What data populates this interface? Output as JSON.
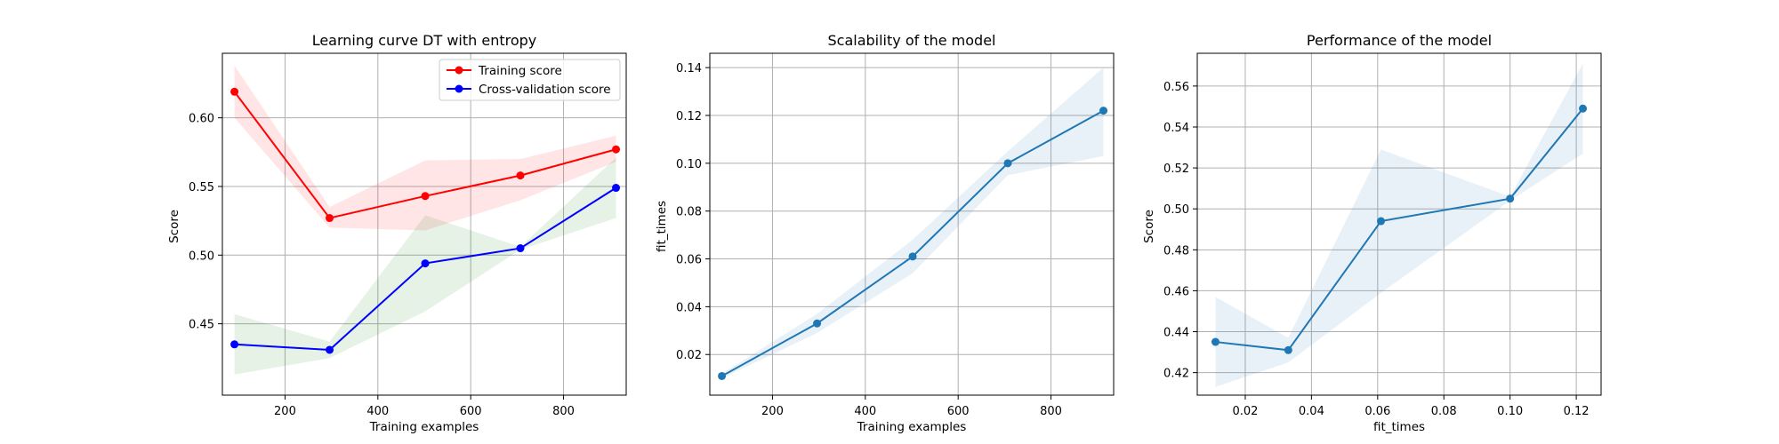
{
  "chart_data": [
    {
      "type": "line",
      "title": "Learning curve DT with entropy",
      "xlabel": "Training examples",
      "ylabel": "Score",
      "xlim": [
        65,
        935
      ],
      "ylim": [
        0.398,
        0.647
      ],
      "xticks": [
        200,
        400,
        600,
        800
      ],
      "yticks": [
        0.45,
        0.5,
        0.55,
        0.6
      ],
      "grid": true,
      "legend": "top-right",
      "x": [
        91,
        296,
        502,
        707,
        913
      ],
      "series": [
        {
          "name": "Training score",
          "color": "#ff0000",
          "band_color": "#ff0000",
          "values": [
            0.619,
            0.527,
            0.543,
            0.558,
            0.577
          ],
          "lower": [
            0.6,
            0.52,
            0.518,
            0.54,
            0.568
          ],
          "upper": [
            0.638,
            0.535,
            0.569,
            0.57,
            0.587
          ]
        },
        {
          "name": "Cross-validation score",
          "color": "#0000ff",
          "band_color": "#008000",
          "values": [
            0.435,
            0.431,
            0.494,
            0.505,
            0.549
          ],
          "lower": [
            0.413,
            0.425,
            0.459,
            0.504,
            0.527
          ],
          "upper": [
            0.457,
            0.437,
            0.529,
            0.506,
            0.571
          ]
        }
      ]
    },
    {
      "type": "line",
      "title": "Scalability of the model",
      "xlabel": "Training examples",
      "ylabel": "fit_times",
      "xlim": [
        65,
        935
      ],
      "ylim": [
        0.003,
        0.146
      ],
      "xticks": [
        200,
        400,
        600,
        800
      ],
      "yticks": [
        0.02,
        0.04,
        0.06,
        0.08,
        0.1,
        0.12,
        0.14
      ],
      "grid": true,
      "x": [
        91,
        296,
        502,
        707,
        913
      ],
      "series": [
        {
          "color": "#1f77b4",
          "values": [
            0.011,
            0.033,
            0.061,
            0.1,
            0.122
          ],
          "lower": [
            0.01,
            0.029,
            0.054,
            0.095,
            0.103
          ],
          "upper": [
            0.012,
            0.037,
            0.068,
            0.105,
            0.14
          ]
        }
      ]
    },
    {
      "type": "line",
      "title": "Performance of the model",
      "xlabel": "fit_times",
      "ylabel": "Score",
      "xlim": [
        0.0055,
        0.1275
      ],
      "ylim": [
        0.409,
        0.576
      ],
      "xticks": [
        0.02,
        0.04,
        0.06,
        0.08,
        0.1,
        0.12
      ],
      "yticks": [
        0.42,
        0.44,
        0.46,
        0.48,
        0.5,
        0.52,
        0.54,
        0.56
      ],
      "grid": true,
      "x": [
        0.011,
        0.033,
        0.061,
        0.1,
        0.122
      ],
      "series": [
        {
          "color": "#1f77b4",
          "values": [
            0.435,
            0.431,
            0.494,
            0.505,
            0.549
          ],
          "lower": [
            0.413,
            0.425,
            0.459,
            0.504,
            0.527
          ],
          "upper": [
            0.457,
            0.437,
            0.529,
            0.506,
            0.571
          ]
        }
      ]
    }
  ]
}
